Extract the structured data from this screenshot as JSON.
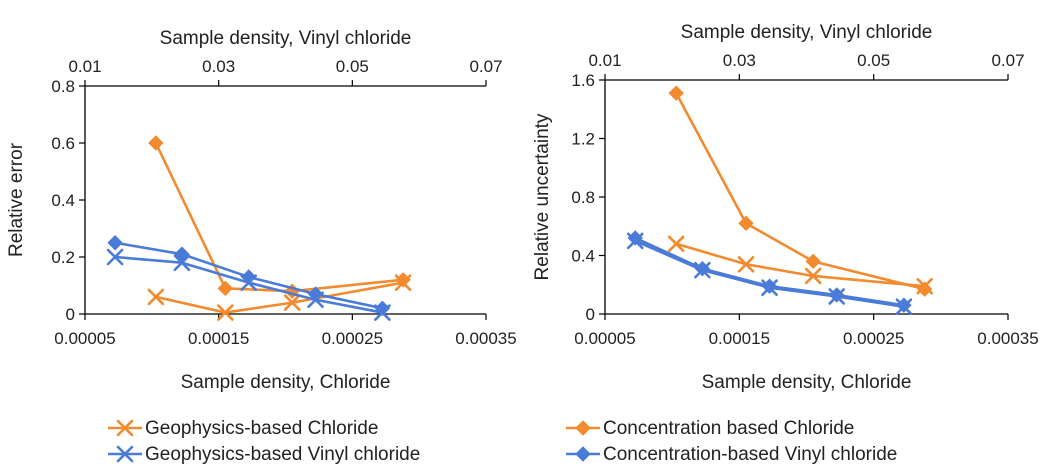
{
  "colors": {
    "orange": "#F28A2E",
    "blue": "#4A7BD8",
    "axis": "#000000",
    "text": "#222222"
  },
  "legend": [
    {
      "label": "Geophysics-based Chloride",
      "color": "orange",
      "marker": "x"
    },
    {
      "label": "Concentration based Chloride",
      "color": "orange",
      "marker": "diamond"
    },
    {
      "label": "Geophysics-based Vinyl chloride",
      "color": "blue",
      "marker": "x"
    },
    {
      "label": "Concentration-based Vinyl chloride",
      "color": "blue",
      "marker": "diamond"
    }
  ],
  "chart_data": [
    {
      "type": "line",
      "xlabel": "Sample density, Chloride",
      "x2label": "Sample density, Vinyl chloride",
      "ylabel": "Relative error",
      "xlim": [
        5e-05,
        0.00035
      ],
      "x2lim": [
        0.01,
        0.07
      ],
      "ylim": [
        0,
        0.8
      ],
      "xticks": [
        "0.00005",
        "0.00015",
        "0.00025",
        "0.00035"
      ],
      "x2ticks": [
        "0.01",
        "0.03",
        "0.05",
        "0.07"
      ],
      "yticks": [
        "0",
        "0.2",
        "0.4",
        "0.6",
        "0.8"
      ],
      "series": [
        {
          "name": "Geophysics-based Chloride",
          "axis": "bottom",
          "color": "orange",
          "marker": "x",
          "x": [
            0.000103,
            0.000155,
            0.000205,
            0.000288
          ],
          "y": [
            0.06,
            0.005,
            0.04,
            0.11
          ]
        },
        {
          "name": "Concentration based Chloride",
          "axis": "bottom",
          "color": "orange",
          "marker": "diamond",
          "x": [
            0.000103,
            0.000155,
            0.000205,
            0.000288
          ],
          "y": [
            0.6,
            0.09,
            0.08,
            0.12
          ]
        },
        {
          "name": "Geophysics-based Vinyl chloride",
          "axis": "top",
          "color": "blue",
          "marker": "x",
          "x": [
            0.0145,
            0.0245,
            0.0345,
            0.0445,
            0.0545
          ],
          "y": [
            0.2,
            0.18,
            0.11,
            0.05,
            0.005
          ]
        },
        {
          "name": "Concentration-based Vinyl chloride",
          "axis": "top",
          "color": "blue",
          "marker": "diamond",
          "x": [
            0.0145,
            0.0245,
            0.0345,
            0.0445,
            0.0545
          ],
          "y": [
            0.25,
            0.21,
            0.13,
            0.07,
            0.02
          ]
        }
      ]
    },
    {
      "type": "line",
      "xlabel": "Sample density, Chloride",
      "x2label": "Sample density, Vinyl chloride",
      "ylabel": "Relative uncertainty",
      "xlim": [
        5e-05,
        0.00035
      ],
      "x2lim": [
        0.01,
        0.07
      ],
      "ylim": [
        0,
        1.6
      ],
      "xticks": [
        "0.00005",
        "0.00015",
        "0.00025",
        "0.00035"
      ],
      "x2ticks": [
        "0.01",
        "0.03",
        "0.05",
        "0.07"
      ],
      "yticks": [
        "0",
        "0.4",
        "0.8",
        "1.2",
        "1.6"
      ],
      "series": [
        {
          "name": "Geophysics-based Chloride",
          "axis": "bottom",
          "color": "orange",
          "marker": "x",
          "x": [
            0.000103,
            0.000155,
            0.000205,
            0.000288
          ],
          "y": [
            0.48,
            0.34,
            0.26,
            0.19
          ]
        },
        {
          "name": "Concentration based Chloride",
          "axis": "bottom",
          "color": "orange",
          "marker": "diamond",
          "x": [
            0.000103,
            0.000155,
            0.000205,
            0.000288
          ],
          "y": [
            1.51,
            0.62,
            0.36,
            0.17
          ]
        },
        {
          "name": "Geophysics-based Vinyl chloride",
          "axis": "top",
          "color": "blue",
          "marker": "x",
          "x": [
            0.0145,
            0.0245,
            0.0345,
            0.0445,
            0.0545
          ],
          "y": [
            0.5,
            0.3,
            0.18,
            0.12,
            0.05
          ]
        },
        {
          "name": "Concentration-based Vinyl chloride",
          "axis": "top",
          "color": "blue",
          "marker": "diamond",
          "x": [
            0.0145,
            0.0245,
            0.0345,
            0.0445,
            0.0545
          ],
          "y": [
            0.52,
            0.31,
            0.19,
            0.13,
            0.06
          ]
        }
      ]
    }
  ]
}
